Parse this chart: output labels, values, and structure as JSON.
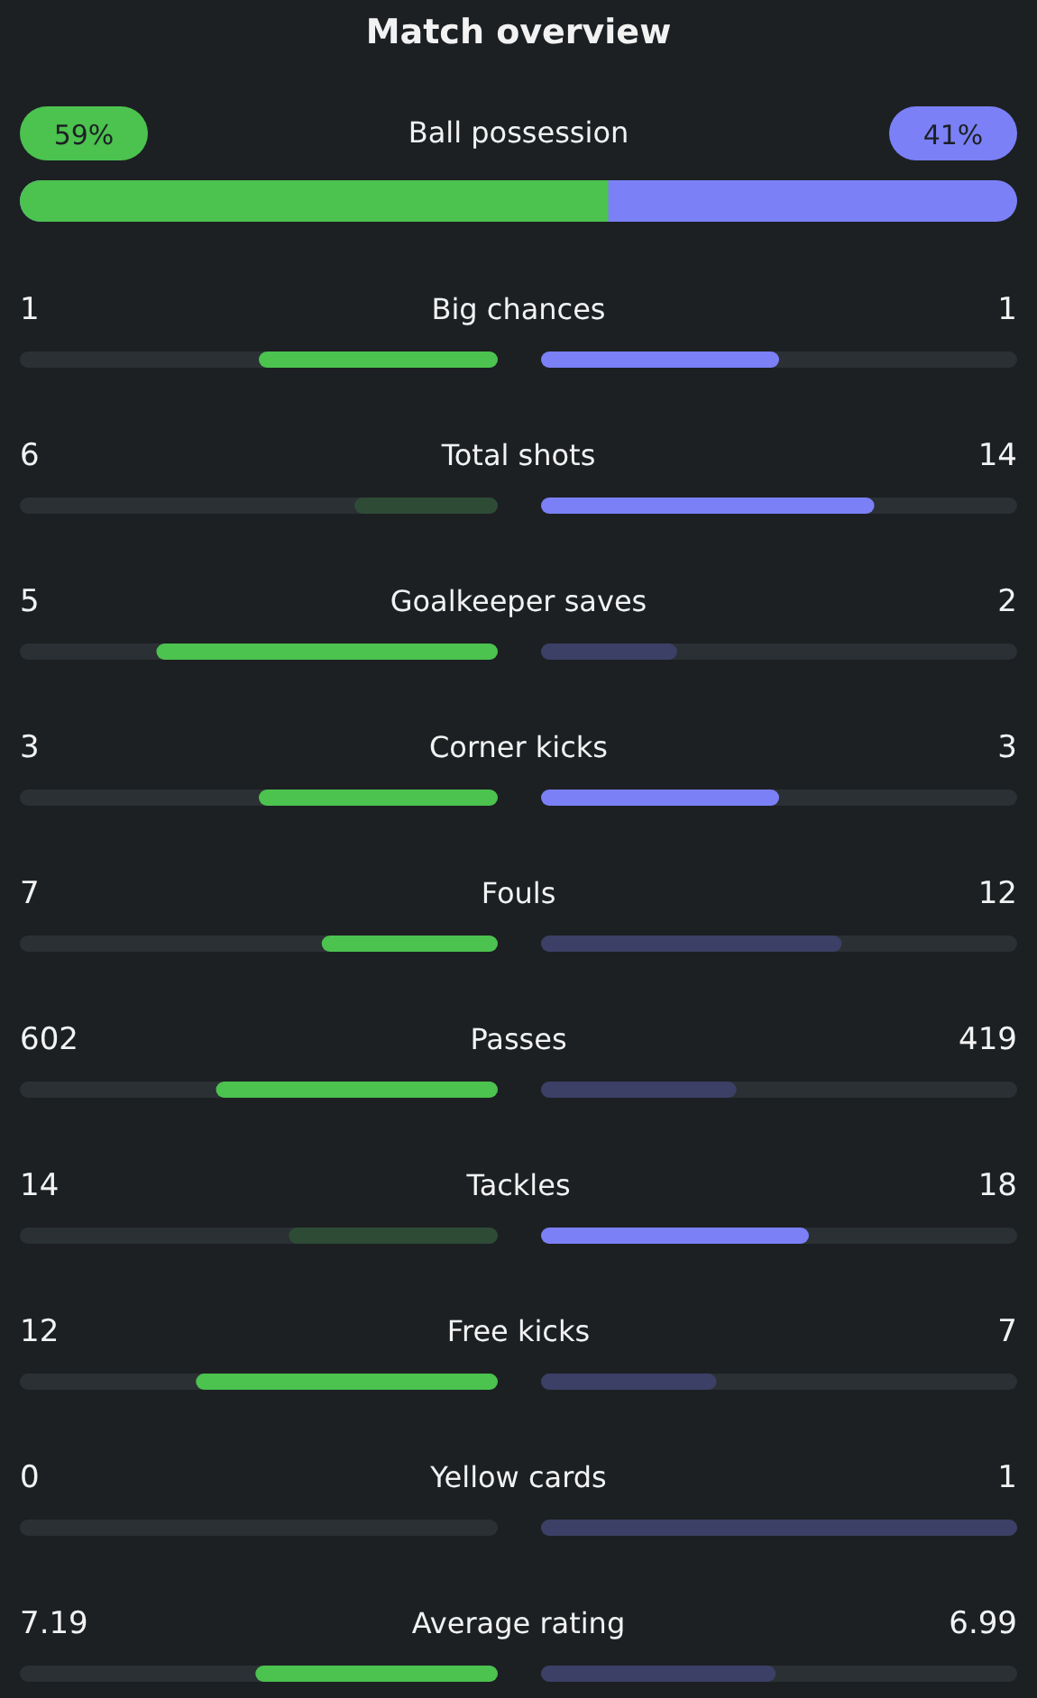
{
  "chart_data": {
    "type": "other",
    "title": "Match overview",
    "categories": [
      "Ball possession",
      "Big chances",
      "Total shots",
      "Goalkeeper saves",
      "Corner kicks",
      "Fouls",
      "Passes",
      "Tackles",
      "Free kicks",
      "Yellow cards",
      "Average rating"
    ],
    "series": [
      {
        "colors": [
          "#4cc24f",
          "#4cc24f",
          "#2e4b36",
          "#4cc24f",
          "#4cc24f",
          "#4cc24f",
          "#4cc24f",
          "#2e4b36",
          "#4cc24f",
          null,
          "#4cc24f"
        ],
        "values": [
          59,
          1,
          6,
          5,
          3,
          7,
          602,
          14,
          12,
          0,
          7.19
        ],
        "value_labels": [
          "59%",
          "1",
          "6",
          "5",
          "3",
          "7",
          "602",
          "14",
          "12",
          "0",
          "7.19"
        ]
      },
      {
        "colors": [
          "#7b80f7",
          "#7b80f7",
          "#7b80f7",
          "#3c4066",
          "#7b80f7",
          "#3c4066",
          "#3c4066",
          "#7b80f7",
          "#3c4066",
          "#3c4066",
          "#3c4066"
        ],
        "values": [
          41,
          1,
          14,
          2,
          3,
          12,
          419,
          18,
          7,
          1,
          6.99
        ],
        "value_labels": [
          "41%",
          "1",
          "14",
          "2",
          "3",
          "12",
          "419",
          "18",
          "7",
          "1",
          "6.99"
        ]
      }
    ]
  }
}
